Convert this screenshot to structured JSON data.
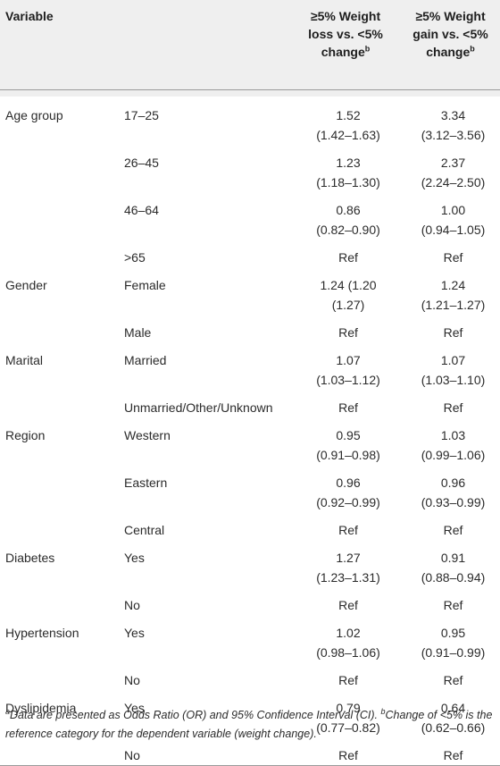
{
  "table": {
    "headers": [
      "Variable",
      "",
      "≥5% Weight loss vs. <5% change",
      "≥5% Weight gain vs. <5% change"
    ],
    "header_sup": "b",
    "rows": [
      {
        "variable": "Age group",
        "level": "17–25",
        "loss": [
          "1.52",
          "(1.42–1.63)"
        ],
        "gain": [
          "3.34",
          "(3.12–3.56)"
        ]
      },
      {
        "variable": "",
        "level": "26–45",
        "loss": [
          "1.23",
          "(1.18–1.30)"
        ],
        "gain": [
          "2.37",
          "(2.24–2.50)"
        ]
      },
      {
        "variable": "",
        "level": "46–64",
        "loss": [
          "0.86",
          "(0.82–0.90)"
        ],
        "gain": [
          "1.00",
          "(0.94–1.05)"
        ]
      },
      {
        "variable": "",
        "level": ">65",
        "loss": [
          "Ref"
        ],
        "gain": [
          "Ref"
        ]
      },
      {
        "variable": "Gender",
        "level": "Female",
        "loss": [
          "1.24 (1.20",
          "(1.27)"
        ],
        "gain": [
          "1.24",
          "(1.21–1.27)"
        ]
      },
      {
        "variable": "",
        "level": "Male",
        "loss": [
          "Ref"
        ],
        "gain": [
          "Ref"
        ]
      },
      {
        "variable": "Marital",
        "level": "Married",
        "loss": [
          "1.07",
          "(1.03–1.12)"
        ],
        "gain": [
          "1.07",
          "(1.03–1.10)"
        ]
      },
      {
        "variable": "",
        "level": "Unmarried/Other/Unknown",
        "loss": [
          "Ref"
        ],
        "gain": [
          "Ref"
        ]
      },
      {
        "variable": "Region",
        "level": "Western",
        "loss": [
          "0.95",
          "(0.91–0.98)"
        ],
        "gain": [
          "1.03",
          "(0.99–1.06)"
        ]
      },
      {
        "variable": "",
        "level": "Eastern",
        "loss": [
          "0.96",
          "(0.92–0.99)"
        ],
        "gain": [
          "0.96",
          "(0.93–0.99)"
        ]
      },
      {
        "variable": "",
        "level": "Central",
        "loss": [
          "Ref"
        ],
        "gain": [
          "Ref"
        ]
      },
      {
        "variable": "Diabetes",
        "level": "Yes",
        "loss": [
          "1.27",
          "(1.23–1.31)"
        ],
        "gain": [
          "0.91",
          "(0.88–0.94)"
        ]
      },
      {
        "variable": "",
        "level": "No",
        "loss": [
          "Ref"
        ],
        "gain": [
          "Ref"
        ]
      },
      {
        "variable": "Hypertension",
        "level": "Yes",
        "loss": [
          "1.02",
          "(0.98–1.06)"
        ],
        "gain": [
          "0.95",
          "(0.91–0.99)"
        ]
      },
      {
        "variable": "",
        "level": "No",
        "loss": [
          "Ref"
        ],
        "gain": [
          "Ref"
        ]
      },
      {
        "variable": "Dyslipidemia",
        "level": "Yes",
        "loss": [
          "0.79",
          "(0.77–0.82)"
        ],
        "gain": [
          "0.64",
          "(0.62–0.66)"
        ]
      },
      {
        "variable": "",
        "level": "No",
        "loss": [
          "Ref"
        ],
        "gain": [
          "Ref"
        ]
      }
    ]
  },
  "footnote": {
    "a_marker": "a",
    "a_text": "Data are presented as Odds Ratio (OR) and 95% Confidence Interval (CI).",
    "b_marker": "b",
    "b_text": "Change of <5% is the reference category for the dependent variable (weight change)."
  }
}
